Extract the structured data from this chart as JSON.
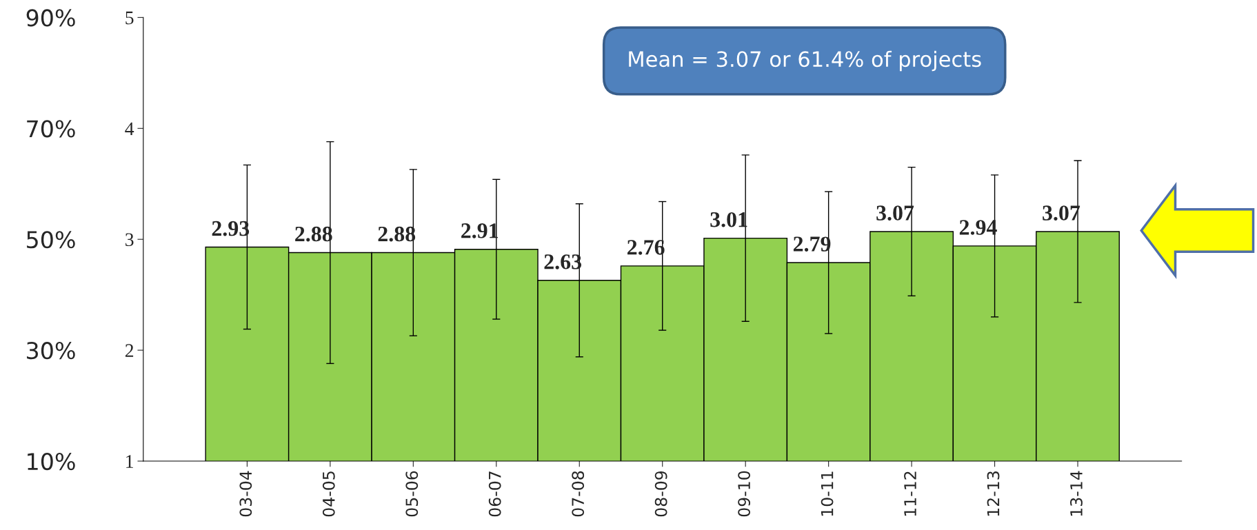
{
  "chart_data": {
    "type": "bar",
    "categories": [
      "03-04",
      "04-05",
      "05-06",
      "06-07",
      "07-08",
      "08-09",
      "09-10",
      "10-11",
      "11-12",
      "12-13",
      "13-14"
    ],
    "values": [
      2.93,
      2.88,
      2.88,
      2.91,
      2.63,
      2.76,
      3.01,
      2.79,
      3.07,
      2.94,
      3.07
    ],
    "errors": [
      0.74,
      1.0,
      0.75,
      0.63,
      0.69,
      0.58,
      0.75,
      0.64,
      0.58,
      0.64,
      0.64
    ],
    "color": "#92d050",
    "data_labels": true,
    "ylim": [
      1,
      5
    ],
    "yticks": [
      1,
      2,
      3,
      4,
      5
    ],
    "y2lim": [
      10,
      90
    ],
    "y2ticks": [
      {
        "value": 10,
        "label": "10%"
      },
      {
        "value": 30,
        "label": "30%"
      },
      {
        "value": 50,
        "label": "50%"
      },
      {
        "value": 70,
        "label": "70%"
      },
      {
        "value": 90,
        "label": "90%"
      }
    ],
    "annotations": [
      "Mean = 3.07 or 61.4% of projects"
    ],
    "grid": false,
    "legend": false
  }
}
